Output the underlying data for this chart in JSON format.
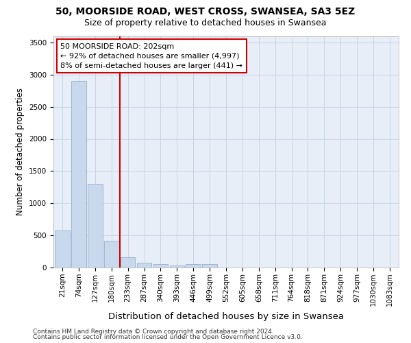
{
  "title1": "50, MOORSIDE ROAD, WEST CROSS, SWANSEA, SA3 5EZ",
  "title2": "Size of property relative to detached houses in Swansea",
  "xlabel": "Distribution of detached houses by size in Swansea",
  "ylabel": "Number of detached properties",
  "footer1": "Contains HM Land Registry data © Crown copyright and database right 2024.",
  "footer2": "Contains public sector information licensed under the Open Government Licence v3.0.",
  "annotation_line1": "50 MOORSIDE ROAD: 202sqm",
  "annotation_line2": "← 92% of detached houses are smaller (4,997)",
  "annotation_line3": "8% of semi-detached houses are larger (441) →",
  "bar_labels": [
    "21sqm",
    "74sqm",
    "127sqm",
    "180sqm",
    "233sqm",
    "287sqm",
    "340sqm",
    "393sqm",
    "446sqm",
    "499sqm",
    "552sqm",
    "605sqm",
    "658sqm",
    "711sqm",
    "764sqm",
    "818sqm",
    "871sqm",
    "924sqm",
    "977sqm",
    "1030sqm",
    "1083sqm"
  ],
  "bar_values": [
    580,
    2900,
    1300,
    420,
    160,
    75,
    55,
    30,
    50,
    50,
    0,
    0,
    0,
    0,
    0,
    0,
    0,
    0,
    0,
    0,
    0
  ],
  "bar_color": "#c8d9ed",
  "bar_edge_color": "#9aafc8",
  "vline_color": "#cc0000",
  "vline_x": 3.5,
  "ylim": [
    0,
    3600
  ],
  "yticks": [
    0,
    500,
    1000,
    1500,
    2000,
    2500,
    3000,
    3500
  ],
  "grid_color": "#c8d4e8",
  "bg_color": "#e8eef8",
  "annotation_box_color": "#cc0000",
  "title1_fontsize": 10,
  "title2_fontsize": 9,
  "xlabel_fontsize": 9.5,
  "ylabel_fontsize": 8.5,
  "tick_fontsize": 7.5,
  "annot_fontsize": 8,
  "footer_fontsize": 6.5
}
